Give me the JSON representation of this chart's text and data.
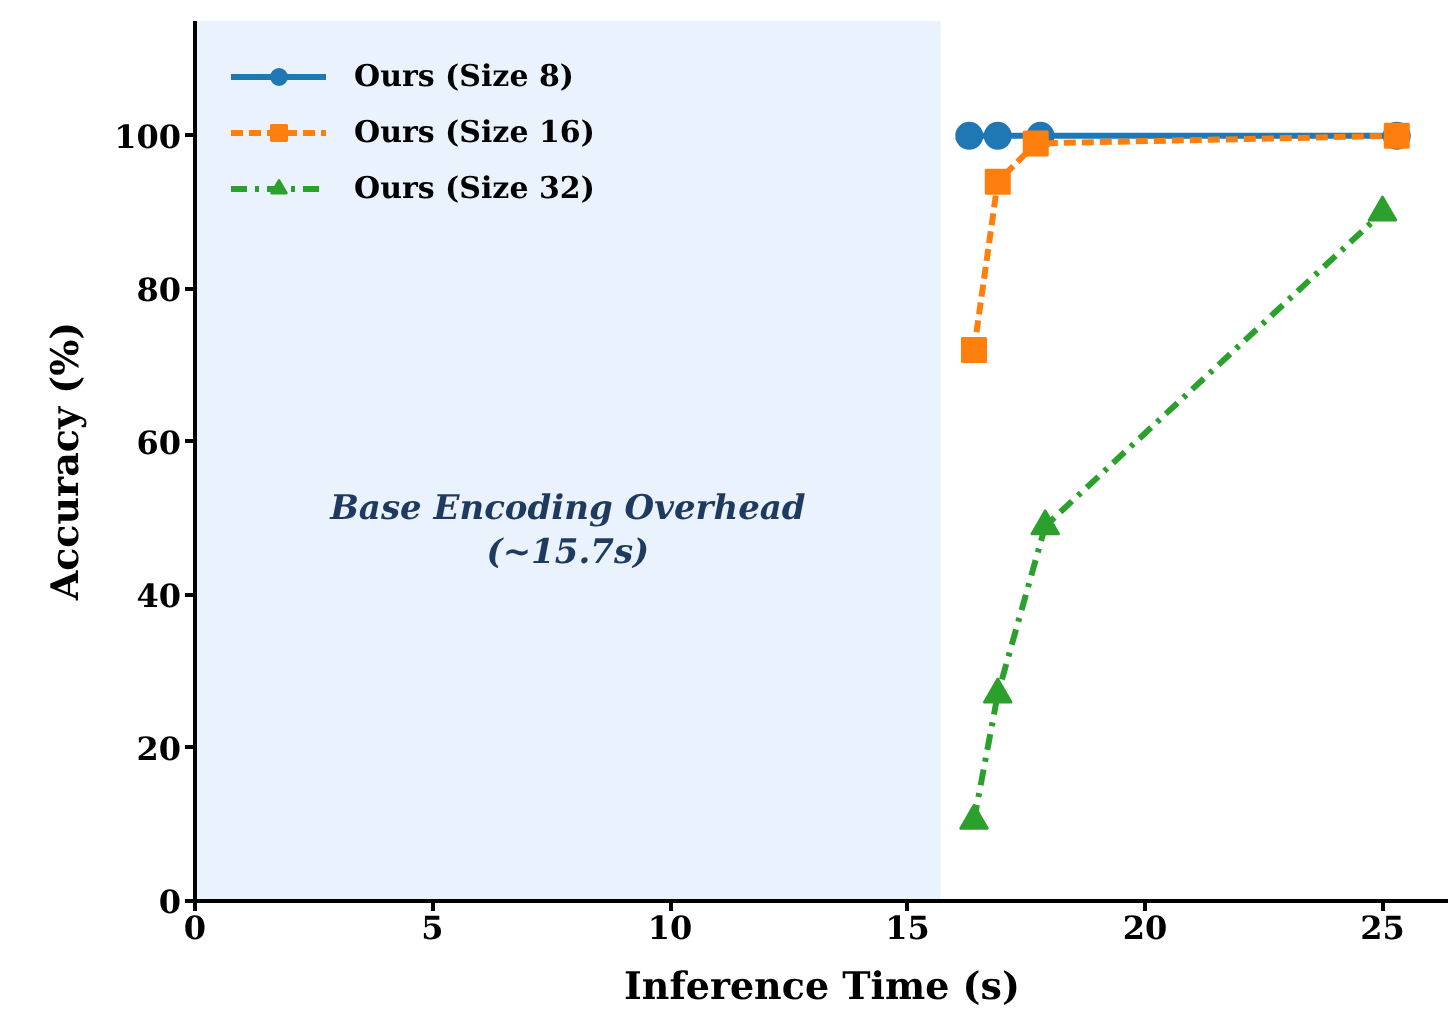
{
  "chart_data": {
    "type": "line",
    "xlabel": "Inference Time (s)",
    "ylabel": "Accuracy (%)",
    "xlim": [
      0,
      26.4
    ],
    "ylim": [
      0,
      115
    ],
    "xticks": [
      0,
      5,
      10,
      15,
      20,
      25
    ],
    "yticks": [
      0,
      20,
      40,
      60,
      80,
      100
    ],
    "legend": "top left",
    "bands": [
      {
        "axis": "x",
        "from": 0,
        "to": 15.7,
        "label": "Base Encoding Overhead\n(~15.7s)",
        "color": "#eaf3fd"
      }
    ],
    "series": [
      {
        "name": "Ours (Size 8)",
        "color": "#1f77b4",
        "marker": "circle",
        "line_style": "solid",
        "x": [
          16.3,
          16.9,
          17.8,
          25.3
        ],
        "values": [
          100,
          100,
          100,
          100
        ]
      },
      {
        "name": "Ours (Size 16)",
        "color": "#ff7f0e",
        "marker": "square",
        "line_style": "dashed",
        "x": [
          16.4,
          16.9,
          17.7,
          25.3
        ],
        "values": [
          72,
          94,
          99,
          100
        ]
      },
      {
        "name": "Ours (Size 32)",
        "color": "#2ca02c",
        "marker": "triangle",
        "line_style": "dashdot",
        "x": [
          16.4,
          16.9,
          17.9,
          25.0
        ],
        "values": [
          10.5,
          27,
          49,
          90
        ]
      }
    ]
  }
}
